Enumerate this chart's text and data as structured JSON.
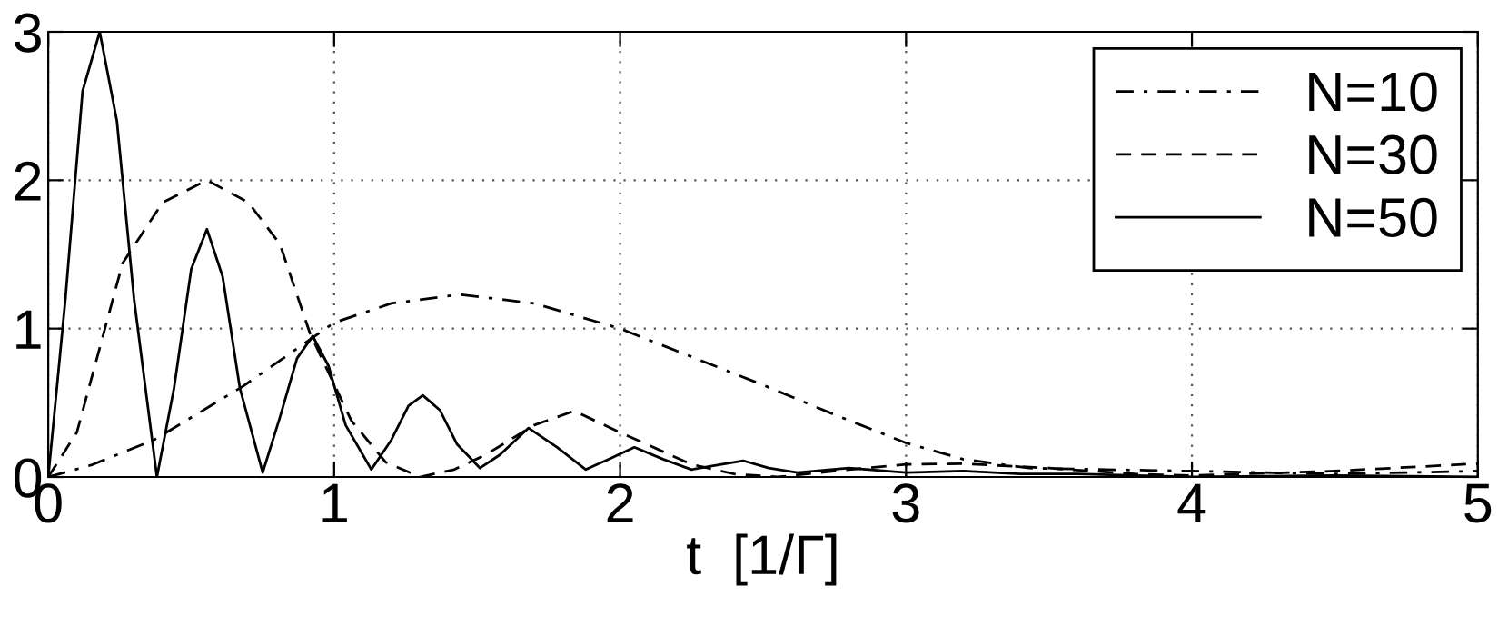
{
  "chart_data": {
    "type": "line",
    "xlabel": "t  [1/Γ]",
    "xlim": [
      0,
      5
    ],
    "ylim": [
      0,
      3
    ],
    "xticks": [
      0,
      1,
      2,
      3,
      4,
      5
    ],
    "yticks": [
      0,
      1,
      2,
      3
    ],
    "grid": true,
    "legend": "top right",
    "marker": "none",
    "series": [
      {
        "name": "N=10",
        "color": "#000000",
        "line_style": "dashdot",
        "x": [
          0,
          0.15,
          0.37,
          0.68,
          1.0,
          1.2,
          1.44,
          1.7,
          2.0,
          2.25,
          2.5,
          2.75,
          3.0,
          3.2,
          3.43,
          3.7,
          4.0,
          4.5,
          5.0
        ],
        "values": [
          0,
          0.08,
          0.25,
          0.61,
          1.04,
          1.17,
          1.23,
          1.17,
          1.0,
          0.81,
          0.62,
          0.42,
          0.23,
          0.12,
          0.06,
          0.05,
          0.04,
          0.02,
          0.04
        ]
      },
      {
        "name": "N=30",
        "color": "#000000",
        "line_style": "dashed",
        "x": [
          0,
          0.1,
          0.26,
          0.4,
          0.555,
          0.7,
          0.81,
          0.915,
          1.06,
          1.18,
          1.3,
          1.42,
          1.53,
          1.7,
          1.84,
          2.0,
          2.25,
          2.4,
          2.55,
          2.8,
          3.0,
          3.2,
          3.5,
          3.8,
          4.0,
          4.5,
          5.0
        ],
        "values": [
          0,
          0.3,
          1.44,
          1.85,
          2.0,
          1.85,
          1.57,
          0.97,
          0.38,
          0.1,
          0.0,
          0.05,
          0.15,
          0.35,
          0.445,
          0.3,
          0.085,
          0.02,
          0.0,
          0.05,
          0.085,
          0.09,
          0.06,
          0.02,
          0.01,
          0.04,
          0.09
        ]
      },
      {
        "name": "N=50",
        "color": "#000000",
        "line_style": "solid",
        "x": [
          0,
          0.06,
          0.12,
          0.18,
          0.24,
          0.3,
          0.38,
          0.44,
          0.5,
          0.555,
          0.61,
          0.67,
          0.75,
          0.81,
          0.87,
          0.925,
          0.98,
          1.04,
          1.13,
          1.2,
          1.26,
          1.31,
          1.37,
          1.43,
          1.51,
          1.58,
          1.68,
          1.78,
          1.88,
          1.96,
          2.05,
          2.15,
          2.25,
          2.34,
          2.43,
          2.52,
          2.62,
          2.8,
          3.0,
          3.2,
          3.4,
          3.6,
          3.8,
          4.0,
          4.5,
          5.0
        ],
        "values": [
          0,
          1.2,
          2.6,
          3.0,
          2.4,
          1.2,
          0.0,
          0.6,
          1.4,
          1.67,
          1.35,
          0.6,
          0.03,
          0.4,
          0.8,
          0.95,
          0.75,
          0.35,
          0.05,
          0.25,
          0.48,
          0.55,
          0.45,
          0.22,
          0.06,
          0.15,
          0.33,
          0.2,
          0.05,
          0.12,
          0.2,
          0.12,
          0.05,
          0.08,
          0.11,
          0.06,
          0.03,
          0.06,
          0.03,
          0.04,
          0.02,
          0.02,
          0.01,
          0.0,
          0.01,
          0.0
        ]
      }
    ]
  }
}
